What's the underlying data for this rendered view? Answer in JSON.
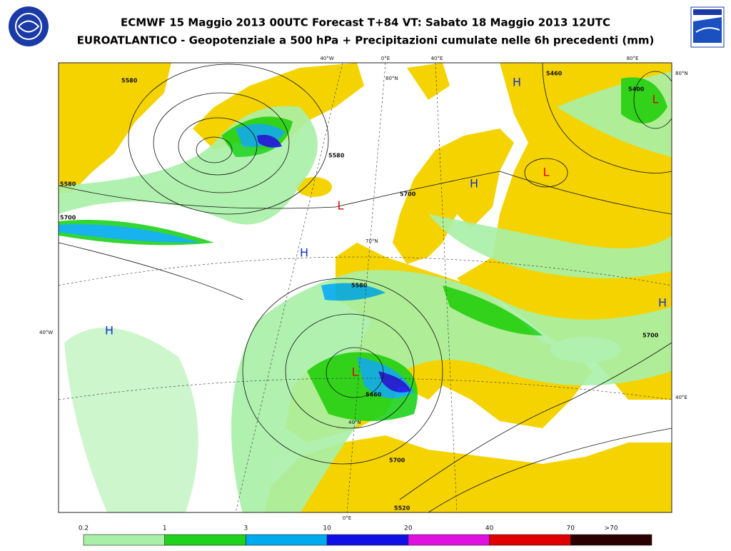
{
  "header": {
    "title": "ECMWF 15 Maggio 2013 00UTC Forecast T+84 VT: Sabato 18 Maggio 2013 12UTC",
    "subtitle": "EUROATLANTICO - Geopotenziale a 500 hPa + Precipitazioni cumulate nelle 6h precedenti (mm)"
  },
  "map": {
    "highs": [
      "H",
      "H",
      "H",
      "H",
      "H"
    ],
    "lows": [
      "L",
      "L",
      "L",
      "L"
    ],
    "contour_labels": [
      "5580",
      "5580",
      "5580",
      "5580",
      "5700",
      "5700",
      "5700",
      "5700",
      "5460",
      "5460",
      "5520",
      "5400"
    ],
    "grid_labels": [
      "40°W",
      "0°E",
      "40°E",
      "80°E",
      "80°N",
      "80°N",
      "40°W",
      "40°E",
      "0°E",
      "40°N",
      "70°N"
    ]
  },
  "colorbar": {
    "labels": [
      "0.2",
      "1",
      "3",
      "10",
      "20",
      "40",
      "70",
      ">70"
    ],
    "colors": [
      "#a8f0a8",
      "#1ed21e",
      "#00aaee",
      "#1010e6",
      "#e010e0",
      "#e00000",
      "#2a0000"
    ]
  }
}
